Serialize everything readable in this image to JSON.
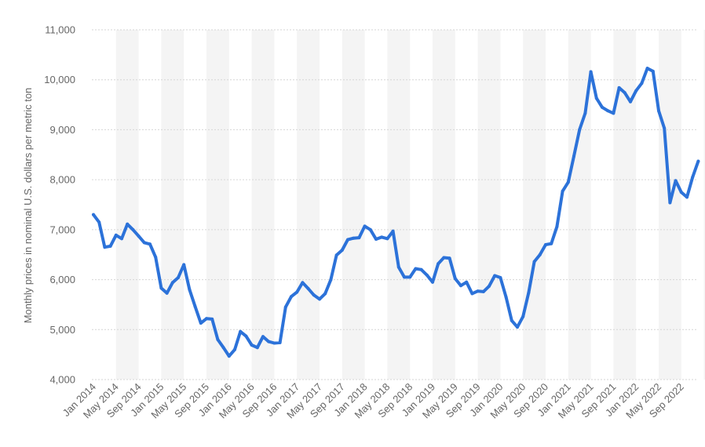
{
  "chart_data": {
    "type": "line",
    "title": "",
    "xlabel": "",
    "ylabel": "Monthly prices in nominal U.S. dollars per metric ton",
    "ylim": [
      4000,
      11000
    ],
    "yticks": [
      {
        "value": 4000,
        "label": "4,000"
      },
      {
        "value": 5000,
        "label": "5,000"
      },
      {
        "value": 6000,
        "label": "6,000"
      },
      {
        "value": 7000,
        "label": "7,000"
      },
      {
        "value": 8000,
        "label": "8,000"
      },
      {
        "value": 9000,
        "label": "9,000"
      },
      {
        "value": 10000,
        "label": "10,000"
      },
      {
        "value": 11000,
        "label": "11,000"
      }
    ],
    "xticks": [
      {
        "index": 0,
        "label": "Jan 2014"
      },
      {
        "index": 4,
        "label": "May 2014"
      },
      {
        "index": 8,
        "label": "Sep 2014"
      },
      {
        "index": 12,
        "label": "Jan 2015"
      },
      {
        "index": 16,
        "label": "May 2015"
      },
      {
        "index": 20,
        "label": "Sep 2015"
      },
      {
        "index": 24,
        "label": "Jan 2016"
      },
      {
        "index": 28,
        "label": "May 2016"
      },
      {
        "index": 32,
        "label": "Sep 2016"
      },
      {
        "index": 36,
        "label": "Jan 2017"
      },
      {
        "index": 40,
        "label": "May 2017"
      },
      {
        "index": 44,
        "label": "Sep 2017"
      },
      {
        "index": 48,
        "label": "Jan 2018"
      },
      {
        "index": 52,
        "label": "May 2018"
      },
      {
        "index": 56,
        "label": "Sep 2018"
      },
      {
        "index": 60,
        "label": "Jan 2019"
      },
      {
        "index": 64,
        "label": "May 2019"
      },
      {
        "index": 68,
        "label": "Sep 2019"
      },
      {
        "index": 72,
        "label": "Jan 2020"
      },
      {
        "index": 76,
        "label": "May 2020"
      },
      {
        "index": 80,
        "label": "Sep 2020"
      },
      {
        "index": 84,
        "label": "Jan 2021"
      },
      {
        "index": 88,
        "label": "May 2021"
      },
      {
        "index": 92,
        "label": "Sep 2021"
      },
      {
        "index": 96,
        "label": "Jan 2022"
      },
      {
        "index": 100,
        "label": "May 2022"
      },
      {
        "index": 104,
        "label": "Sep 2022"
      }
    ],
    "x_start": "Jan 2014",
    "x_end": "Dec 2022",
    "grid": "horizontal dashed, alternating vertical bands",
    "legend": "none",
    "series": [
      {
        "name": "",
        "color": "#2c72d9",
        "values": [
          7300,
          7150,
          6650,
          6670,
          6890,
          6820,
          7110,
          7000,
          6870,
          6740,
          6710,
          6450,
          5830,
          5730,
          5940,
          6040,
          6300,
          5800,
          5460,
          5130,
          5220,
          5210,
          4800,
          4640,
          4470,
          4600,
          4960,
          4870,
          4690,
          4640,
          4860,
          4760,
          4730,
          4740,
          5450,
          5660,
          5750,
          5940,
          5820,
          5690,
          5610,
          5720,
          6000,
          6490,
          6590,
          6800,
          6830,
          6840,
          7070,
          7000,
          6810,
          6850,
          6820,
          6970,
          6250,
          6050,
          6050,
          6220,
          6200,
          6090,
          5950,
          6320,
          6440,
          6430,
          6020,
          5880,
          5950,
          5720,
          5770,
          5760,
          5870,
          6080,
          6040,
          5650,
          5180,
          5050,
          5260,
          5740,
          6360,
          6500,
          6700,
          6720,
          7060,
          7770,
          7950,
          8470,
          9000,
          9330,
          10160,
          9630,
          9450,
          9380,
          9330,
          9840,
          9740,
          9560,
          9780,
          9930,
          10230,
          10170,
          9380,
          9030,
          7540,
          7980,
          7750,
          7650,
          8050,
          8370
        ]
      }
    ]
  }
}
